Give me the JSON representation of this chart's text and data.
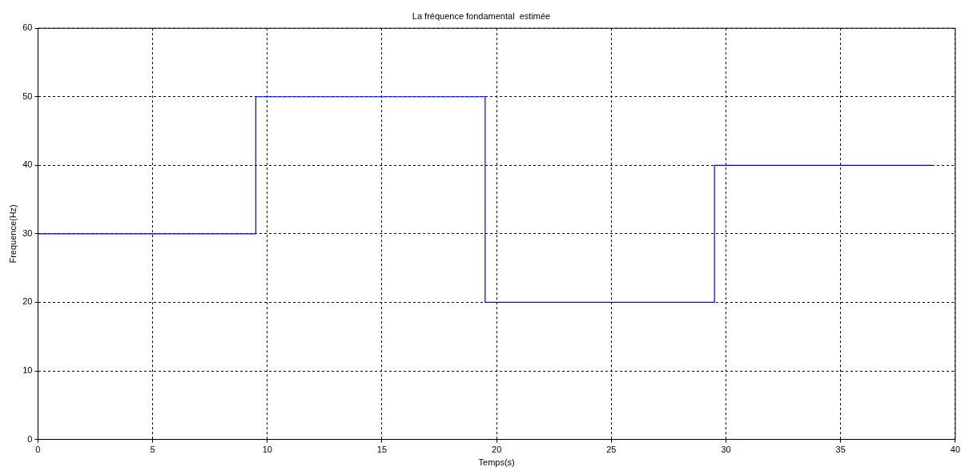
{
  "chart_data": {
    "type": "step",
    "title": "La fréquence fondamental  estimée",
    "xlabel": "Temps(s)",
    "ylabel": "Frequence(Hz)",
    "x": [
      0,
      9.5,
      19.5,
      29.5,
      39
    ],
    "series": [
      {
        "color": "#0000ff",
        "values": [
          30,
          50,
          20,
          40,
          40
        ]
      }
    ],
    "xlim": [
      0,
      40
    ],
    "xticks": [
      0,
      5,
      10,
      15,
      20,
      25,
      30,
      35,
      40
    ],
    "ylim": [
      0,
      60
    ],
    "yticks": [
      0,
      10,
      20,
      30,
      40,
      50,
      60
    ],
    "grid": true,
    "legend": false,
    "line_style": "solid",
    "marker": "none"
  }
}
